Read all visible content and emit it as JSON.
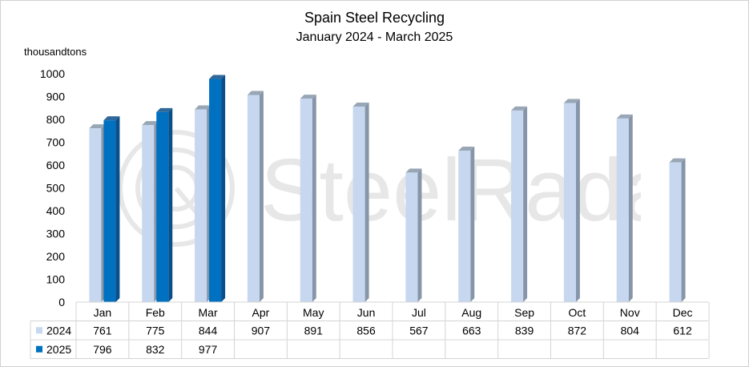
{
  "chart_data": {
    "type": "bar",
    "title": "Spain Steel Recycling",
    "subtitle": "January 2024 - March 2025",
    "ylabel": "thousandtons",
    "ylim": [
      0,
      1000
    ],
    "yticks": [
      0,
      100,
      200,
      300,
      400,
      500,
      600,
      700,
      800,
      900,
      1000
    ],
    "grid": false,
    "legend": "data-table",
    "categories": [
      "Jan",
      "Feb",
      "Mar",
      "Apr",
      "May",
      "Jun",
      "Jul",
      "Aug",
      "Sep",
      "Oct",
      "Nov",
      "Dec"
    ],
    "series": [
      {
        "name": "2024",
        "color": "#c6d7ef",
        "side_color": "#8696a8",
        "values": [
          761,
          775,
          844,
          907,
          891,
          856,
          567,
          663,
          839,
          872,
          804,
          612
        ]
      },
      {
        "name": "2025",
        "color": "#0070c0",
        "side_color": "#0a4e8a",
        "values": [
          796,
          832,
          977,
          null,
          null,
          null,
          null,
          null,
          null,
          null,
          null,
          null
        ]
      }
    ]
  },
  "watermark": "SteelRadar"
}
